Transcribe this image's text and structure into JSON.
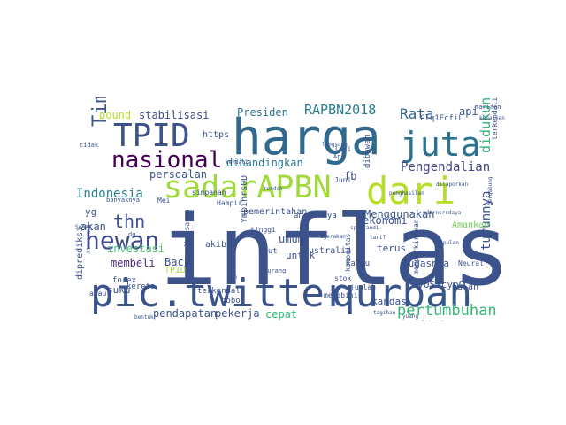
{
  "words": [
    {
      "text": "inflasi",
      "color": "#3b528b"
    },
    {
      "text": "harga",
      "color": "#31688e"
    },
    {
      "text": "pic.twitter",
      "color": "#3b528b"
    },
    {
      "text": "qurban",
      "color": "#39568c"
    },
    {
      "text": "sadarAPBN",
      "color": "#9fda3a"
    },
    {
      "text": "dari",
      "color": "#b5de2b"
    },
    {
      "text": "juta",
      "color": "#2c728e"
    },
    {
      "text": "TPID",
      "color": "#3b528b"
    },
    {
      "text": "Tim",
      "color": "#3b528b"
    },
    {
      "text": "nasional",
      "color": "#440154"
    },
    {
      "text": "hewan",
      "color": "#3e4a89"
    },
    {
      "text": "thn",
      "color": "#3b528b"
    },
    {
      "text": "RAPBN2018",
      "color": "#287c8e"
    },
    {
      "text": "Rata",
      "color": "#33638d"
    },
    {
      "text": "Pengendalian",
      "color": "#414487"
    },
    {
      "text": "pertumbuhan",
      "color": "#35b779"
    },
    {
      "text": "Indonesia",
      "color": "#26828e"
    },
    {
      "text": "didukung",
      "color": "#31b57b"
    },
    {
      "text": "turunnya",
      "color": "#3b528b"
    },
    {
      "text": "membeli",
      "color": "#482878"
    },
    {
      "text": "Amankan",
      "color": "#6ece58"
    },
    {
      "text": "stabilisasi",
      "color": "#3e4a89"
    },
    {
      "text": "Presiden",
      "color": "#2c728e"
    },
    {
      "text": "api",
      "color": "#3b528b"
    },
    {
      "text": "pound",
      "color": "#b5de2b"
    },
    {
      "text": "persoalan",
      "color": "#3b528b"
    },
    {
      "text": "dibandingkan",
      "color": "#2a788e"
    },
    {
      "text": "investasi",
      "color": "#46c06f"
    },
    {
      "text": "yg",
      "color": "#3b528b"
    },
    {
      "text": "fb",
      "color": "#3b528b"
    },
    {
      "text": "dibawah",
      "color": "#3b528b"
    },
    {
      "text": "pemerintahan",
      "color": "#3b528b"
    },
    {
      "text": "Menggunakan",
      "color": "#3b528b"
    },
    {
      "text": "ekonomi",
      "color": "#3b528b"
    },
    {
      "text": "pendapatan",
      "color": "#3b528b"
    },
    {
      "text": "pekerja",
      "color": "#3b528b"
    },
    {
      "text": "global",
      "color": "#3b528b"
    },
    {
      "text": "cepat",
      "color": "#35b779"
    },
    {
      "text": "Back",
      "color": "#3b528b"
    },
    {
      "text": "akibat",
      "color": "#3b528b"
    },
    {
      "text": "Australia",
      "color": "#3b528b"
    },
    {
      "text": "umum",
      "color": "#3b528b"
    },
    {
      "text": "untuk",
      "color": "#3b528b"
    },
    {
      "text": "tugasnya",
      "color": "#3b528b"
    },
    {
      "text": "terus",
      "color": "#3b528b"
    },
    {
      "text": "suku",
      "color": "#3b528b"
    },
    {
      "text": "akan",
      "color": "#3b528b"
    },
    {
      "text": "TPID",
      "color": "#addc30"
    },
    {
      "text": "https",
      "color": "#3b528b"
    },
    {
      "text": "ikut",
      "color": "#3b528b"
    },
    {
      "text": "kandas",
      "color": "#3b528b"
    },
    {
      "text": "bulan",
      "color": "#3b528b"
    },
    {
      "text": "sekarang",
      "color": "#3b528b"
    },
    {
      "text": "terkendali",
      "color": "#3b528b"
    },
    {
      "text": "forex",
      "color": "#3b528b"
    },
    {
      "text": "stok",
      "color": "#3b528b"
    },
    {
      "text": "bobot",
      "color": "#3b528b"
    },
    {
      "text": "Juni",
      "color": "#3b528b"
    },
    {
      "text": "lagi",
      "color": "#3b528b"
    },
    {
      "text": "simpanan",
      "color": "#3b528b"
    },
    {
      "text": "Kalau",
      "color": "#3b528b"
    },
    {
      "text": "melebihi",
      "color": "#3b528b"
    },
    {
      "text": "jumlah",
      "color": "#3b528b"
    },
    {
      "text": "kereta",
      "color": "#3b528b"
    },
    {
      "text": "atau",
      "color": "#3b528b"
    },
    {
      "text": "berniat",
      "color": "#3b528b"
    },
    {
      "text": "anjloknya",
      "color": "#3b528b"
    },
    {
      "text": "tinggi",
      "color": "#3b528b"
    },
    {
      "text": "Hampir",
      "color": "#3b528b"
    },
    {
      "text": "Mei",
      "color": "#3b528b"
    },
    {
      "text": "diprediksi",
      "color": "#3b528b"
    },
    {
      "text": "selalu",
      "color": "#3b528b"
    },
    {
      "text": "Neural",
      "color": "#3b528b"
    },
    {
      "text": "terkendalinya",
      "color": "#3b528b"
    },
    {
      "text": "memperkirakan",
      "color": "#3b528b"
    },
    {
      "text": "biasanya",
      "color": "#3b528b"
    },
    {
      "text": "banyaknya",
      "color": "#3b528b"
    },
    {
      "text": "tidak",
      "color": "#3b528b"
    },
    {
      "text": "IKvOSacypO",
      "color": "#3b528b"
    },
    {
      "text": "Ymbihrs0D",
      "color": "#3b528b"
    },
    {
      "text": "Clq1FcfiL",
      "color": "#3b528b"
    },
    {
      "text": "komoditas",
      "color": "#3b528b"
    },
    {
      "text": "Apa",
      "color": "#3b528b"
    },
    {
      "text": "sum",
      "color": "#3b528b"
    },
    {
      "text": "mariaan",
      "color": "#3b528b"
    },
    {
      "text": "kurang",
      "color": "#3b528b"
    },
    {
      "text": "gi",
      "color": "#3b528b"
    },
    {
      "text": "dg",
      "color": "#3b528b"
    },
    {
      "text": "Sebab",
      "color": "#3b528b"
    },
    {
      "text": "bentuk",
      "color": "#3b528b"
    },
    {
      "text": "ktmrnrnya",
      "color": "#3b528b"
    },
    {
      "text": "pdtrnsrrdaya",
      "color": "#3b528b"
    },
    {
      "text": "bergabung",
      "color": "#3b528b"
    },
    {
      "text": "kemunya",
      "color": "#3b528b"
    },
    {
      "text": "yuang",
      "color": "#3b528b"
    },
    {
      "text": "tagihan",
      "color": "#3b528b"
    },
    {
      "text": "kenaikan",
      "color": "#3b528b"
    },
    {
      "text": "dilaporkan",
      "color": "#3b528b"
    },
    {
      "text": "penghasilan",
      "color": "#3b528b"
    },
    {
      "text": "bbm",
      "color": "#3b528b"
    },
    {
      "text": "dgerakan",
      "color": "#3b528b"
    },
    {
      "text": "spaitandi",
      "color": "#3b528b"
    },
    {
      "text": "kumpulan",
      "color": "#3b528b"
    },
    {
      "text": "tarif",
      "color": "#3b528b"
    },
    {
      "text": "kendali",
      "color": "#3b528b"
    },
    {
      "text": "langsung",
      "color": "#3b528b"
    },
    {
      "text": "rendah",
      "color": "#3b528b"
    }
  ]
}
